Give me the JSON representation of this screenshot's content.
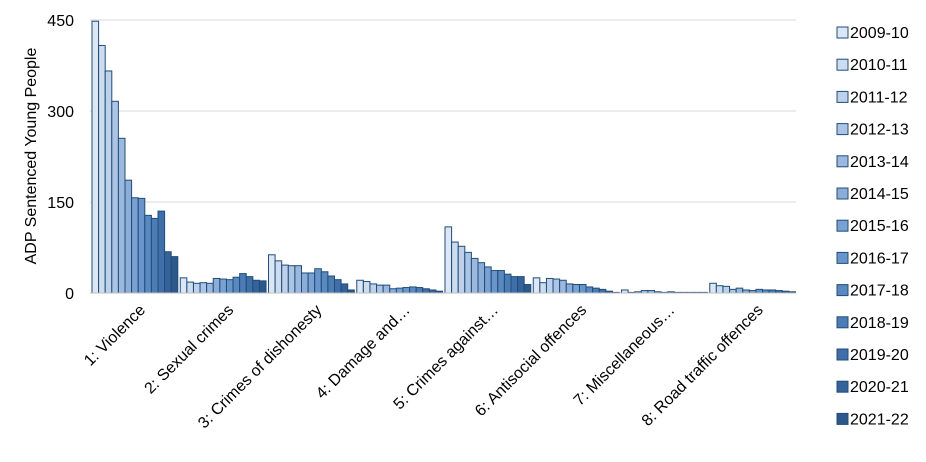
{
  "chart_data": {
    "type": "bar",
    "title": "",
    "xlabel": "",
    "ylabel": "ADP Sentenced Young People",
    "ylim": [
      0,
      450
    ],
    "yticks": [
      0,
      150,
      300,
      450
    ],
    "grid": true,
    "legend_position": "right",
    "categories": [
      "1: Violence",
      "2: Sexual crimes",
      "3: Crimes of dishonesty",
      "4: Damage and…",
      "5: Crimes against…",
      "6: Antisocial offences",
      "7: Miscellaneous…",
      "8: Road traffic offences"
    ],
    "series": [
      {
        "name": "2009-10",
        "color": "#dce6f4",
        "values": [
          448,
          25,
          63,
          21,
          109,
          25,
          5,
          16
        ]
      },
      {
        "name": "2010-11",
        "color": "#cddcef",
        "values": [
          408,
          18,
          53,
          19,
          84,
          17,
          1,
          12
        ]
      },
      {
        "name": "2011-12",
        "color": "#bed0ea",
        "values": [
          366,
          16,
          46,
          15,
          77,
          24,
          2,
          11
        ]
      },
      {
        "name": "2012-13",
        "color": "#adc4e4",
        "values": [
          316,
          17,
          45,
          13,
          67,
          23,
          4,
          6
        ]
      },
      {
        "name": "2013-14",
        "color": "#9cb8de",
        "values": [
          255,
          16,
          45,
          13,
          57,
          21,
          4,
          8
        ]
      },
      {
        "name": "2014-15",
        "color": "#8badd8",
        "values": [
          186,
          24,
          33,
          7,
          50,
          15,
          2,
          5
        ]
      },
      {
        "name": "2015-16",
        "color": "#7aa1d2",
        "values": [
          157,
          23,
          33,
          8,
          43,
          14,
          1,
          4
        ]
      },
      {
        "name": "2016-17",
        "color": "#6a95ca",
        "values": [
          156,
          22,
          40,
          9,
          37,
          14,
          2,
          6
        ]
      },
      {
        "name": "2017-18",
        "color": "#5a88c0",
        "values": [
          128,
          26,
          35,
          10,
          37,
          10,
          1,
          5
        ]
      },
      {
        "name": "2018-19",
        "color": "#4d7cb5",
        "values": [
          123,
          32,
          28,
          9,
          31,
          8,
          1,
          5
        ]
      },
      {
        "name": "2019-20",
        "color": "#406ea8",
        "values": [
          135,
          27,
          22,
          7,
          27,
          6,
          1,
          4
        ]
      },
      {
        "name": "2020-21",
        "color": "#36629a",
        "values": [
          68,
          21,
          15,
          5,
          27,
          3,
          1,
          3
        ]
      },
      {
        "name": "2021-22",
        "color": "#2e578c",
        "values": [
          60,
          20,
          5,
          3,
          14,
          1,
          1,
          2
        ]
      }
    ],
    "legend_labels": [
      "2009-10",
      "2010-11",
      "2011-12",
      "2012-13",
      "2013-14",
      "2014-15",
      "2015-16",
      "2016-17",
      "2017-18",
      "2018-19",
      "2019-20",
      "2020-21",
      "2021-22"
    ]
  }
}
